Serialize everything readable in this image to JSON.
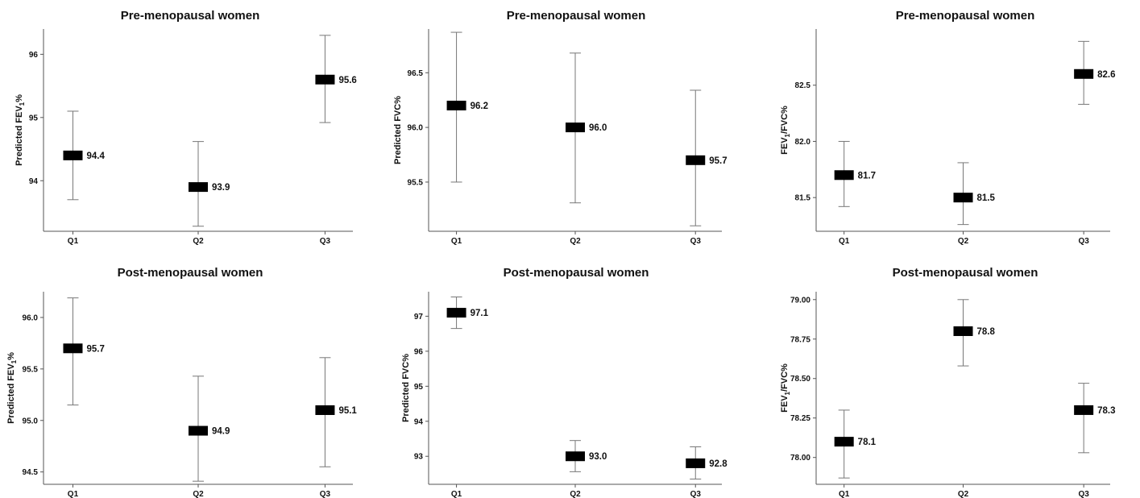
{
  "chart_data": [
    {
      "type": "errorbar",
      "title": "Pre-menopausal women",
      "ylabel": {
        "pre": "Predicted FEV",
        "sub": "1",
        "post": "%"
      },
      "categories": [
        "Q1",
        "Q2",
        "Q3"
      ],
      "values": [
        94.4,
        93.9,
        95.6
      ],
      "labels": [
        "94.4",
        "93.9",
        "95.6"
      ],
      "ci_low": [
        93.7,
        93.28,
        94.92
      ],
      "ci_high": [
        95.1,
        94.62,
        96.3
      ],
      "ylim": [
        93.2,
        96.4
      ],
      "yticks": [
        94,
        95,
        96
      ],
      "ytick_labels": [
        "94",
        "95",
        "96"
      ]
    },
    {
      "type": "errorbar",
      "title": "Pre-menopausal women",
      "ylabel": {
        "pre": "Predicted FVC%",
        "sub": "",
        "post": ""
      },
      "categories": [
        "Q1",
        "Q2",
        "Q3"
      ],
      "values": [
        96.2,
        96.0,
        95.7
      ],
      "labels": [
        "96.2",
        "96.0",
        "95.7"
      ],
      "ci_low": [
        95.5,
        95.31,
        95.1
      ],
      "ci_high": [
        96.87,
        96.68,
        96.34
      ],
      "ylim": [
        95.05,
        96.9
      ],
      "yticks": [
        95.5,
        96.0,
        96.5
      ],
      "ytick_labels": [
        "95.5",
        "96.0",
        "96.5"
      ]
    },
    {
      "type": "errorbar",
      "title": "Pre-menopausal women",
      "ylabel": {
        "pre": "FEV",
        "sub": "1",
        "post": "/FVC%"
      },
      "categories": [
        "Q1",
        "Q2",
        "Q3"
      ],
      "values": [
        81.7,
        81.5,
        82.6
      ],
      "labels": [
        "81.7",
        "81.5",
        "82.6"
      ],
      "ci_low": [
        81.42,
        81.26,
        82.33
      ],
      "ci_high": [
        82.0,
        81.81,
        82.89
      ],
      "ylim": [
        81.2,
        83.0
      ],
      "yticks": [
        81.5,
        82.0,
        82.5
      ],
      "ytick_labels": [
        "81.5",
        "82.0",
        "82.5"
      ]
    },
    {
      "type": "errorbar",
      "title": "Post-menopausal women",
      "ylabel": {
        "pre": "Predicted FEV",
        "sub": "1",
        "post": "%"
      },
      "categories": [
        "Q1",
        "Q2",
        "Q3"
      ],
      "values": [
        95.7,
        94.9,
        95.1
      ],
      "labels": [
        "95.7",
        "94.9",
        "95.1"
      ],
      "ci_low": [
        95.15,
        94.41,
        94.55
      ],
      "ci_high": [
        96.19,
        95.43,
        95.61
      ],
      "ylim": [
        94.38,
        96.25
      ],
      "yticks": [
        94.5,
        95.0,
        95.5,
        96.0
      ],
      "ytick_labels": [
        "94.5",
        "95.0",
        "95.5",
        "96.0"
      ]
    },
    {
      "type": "errorbar",
      "title": "Post-menopausal women",
      "ylabel": {
        "pre": "Predicted FVC%",
        "sub": "",
        "post": ""
      },
      "categories": [
        "Q1",
        "Q2",
        "Q3"
      ],
      "values": [
        97.1,
        93.0,
        92.8
      ],
      "labels": [
        "97.1",
        "93.0",
        "92.8"
      ],
      "ci_low": [
        96.65,
        92.56,
        92.35
      ],
      "ci_high": [
        97.55,
        93.45,
        93.27
      ],
      "ylim": [
        92.2,
        97.7
      ],
      "yticks": [
        93,
        94,
        95,
        96,
        97
      ],
      "ytick_labels": [
        "93",
        "94",
        "95",
        "96",
        "97"
      ]
    },
    {
      "type": "errorbar",
      "title": "Post-menopausal women",
      "ylabel": {
        "pre": "FEV",
        "sub": "1",
        "post": "/FVC%"
      },
      "categories": [
        "Q1",
        "Q2",
        "Q3"
      ],
      "values": [
        78.1,
        78.8,
        78.3
      ],
      "labels": [
        "78.1",
        "78.8",
        "78.3"
      ],
      "ci_low": [
        77.87,
        78.58,
        78.03
      ],
      "ci_high": [
        78.3,
        79.0,
        78.47
      ],
      "ylim": [
        77.83,
        79.05
      ],
      "yticks": [
        78.0,
        78.25,
        78.5,
        78.75,
        79.0
      ],
      "ytick_labels": [
        "78.00",
        "78.25",
        "78.50",
        "78.75",
        "79.00"
      ]
    }
  ]
}
